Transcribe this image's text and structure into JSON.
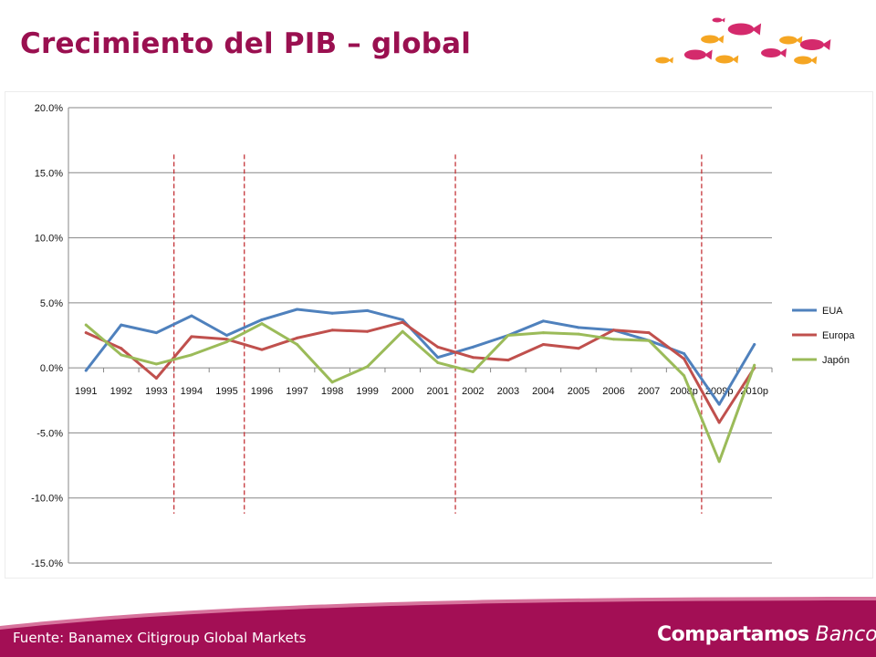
{
  "slide": {
    "title": "Crecimiento del PIB – global",
    "source": "Fuente: Banamex Citigroup Global Markets",
    "brand_name": "Compartamos",
    "brand_suffix": "Banco"
  },
  "colors": {
    "title": "#9a1050",
    "footer": "#a30f55",
    "fish_pink": "#d42a6c",
    "fish_orange": "#f5a623"
  },
  "chart_data": {
    "type": "line",
    "categories": [
      "1991",
      "1992",
      "1993",
      "1994",
      "1995",
      "1996",
      "1997",
      "1998",
      "1999",
      "2000",
      "2001",
      "2002",
      "2003",
      "2004",
      "2005",
      "2006",
      "2007",
      "2008p",
      "2009p",
      "2010p"
    ],
    "series": [
      {
        "name": "EUA",
        "color": "#4f81bd",
        "values": [
          -0.2,
          3.3,
          2.7,
          4.0,
          2.5,
          3.7,
          4.5,
          4.2,
          4.4,
          3.7,
          0.8,
          1.6,
          2.5,
          3.6,
          3.1,
          2.9,
          2.1,
          1.1,
          -2.8,
          1.8
        ]
      },
      {
        "name": "Europa",
        "color": "#c0504d",
        "values": [
          2.7,
          1.5,
          -0.8,
          2.4,
          2.2,
          1.4,
          2.3,
          2.9,
          2.8,
          3.5,
          1.6,
          0.8,
          0.6,
          1.8,
          1.5,
          2.9,
          2.7,
          0.7,
          -4.2,
          0.0
        ]
      },
      {
        "name": "Japón",
        "color": "#9bbb59",
        "values": [
          3.3,
          1.0,
          0.3,
          1.0,
          2.0,
          3.4,
          1.8,
          -1.1,
          0.1,
          2.8,
          0.4,
          -0.3,
          2.5,
          2.7,
          2.6,
          2.2,
          2.1,
          -0.6,
          -7.2,
          0.2
        ]
      }
    ],
    "y_ticks": [
      "20.0%",
      "15.0%",
      "10.0%",
      "5.0%",
      "0.0%",
      "-5.0%",
      "-10.0%",
      "-15.0%"
    ],
    "ylim": [
      -15,
      20
    ],
    "y_step": 5,
    "gridlines": true,
    "legend_position": "right",
    "reference_lines": {
      "style": "dashed",
      "color": "#c0252a",
      "after_categories": [
        "1993",
        "1995",
        "2001",
        "2008p"
      ]
    },
    "title": "",
    "xlabel": "",
    "ylabel": ""
  }
}
